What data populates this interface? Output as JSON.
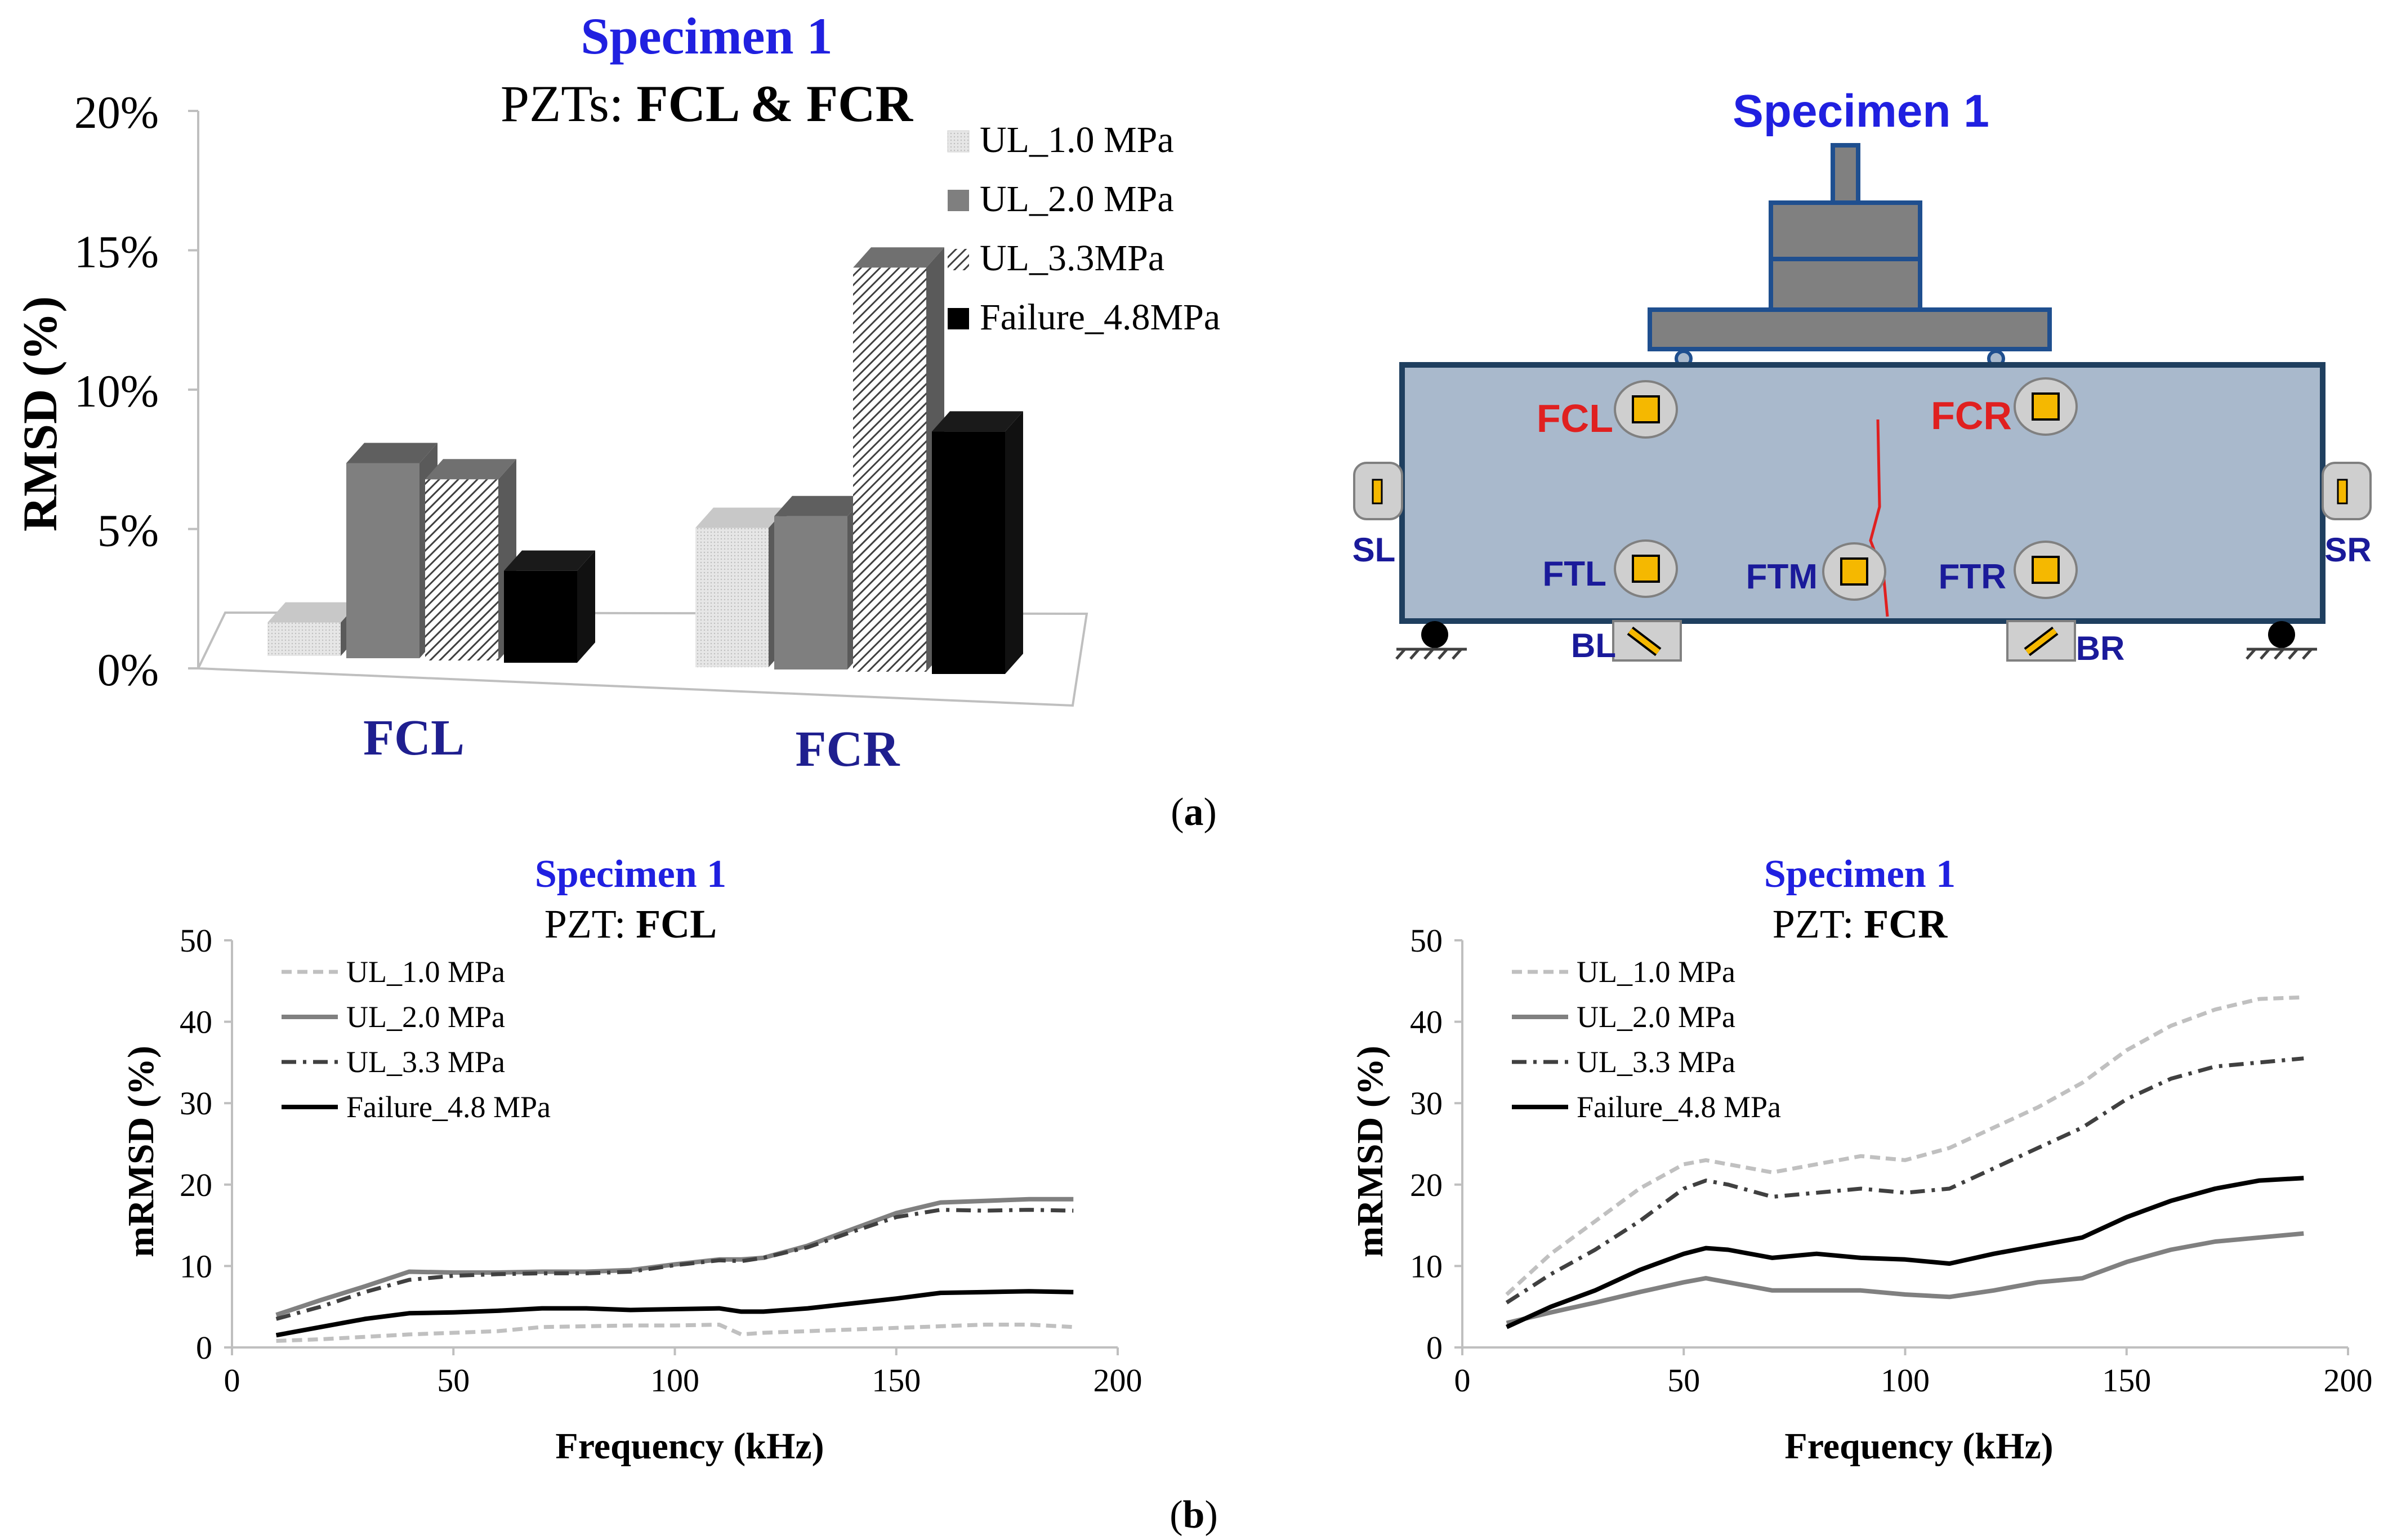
{
  "figure": {
    "panel_a_label": "(a)",
    "panel_a_letter": "a",
    "panel_b_label": "(b)",
    "panel_b_letter": "b",
    "open_paren": "(",
    "close_paren": ")"
  },
  "colors": {
    "specimen_title": "#2020e0",
    "sensor_label_red": "#e02020",
    "sensor_label_blue": "#1a1a9a",
    "category_blue": "#1f1f8f",
    "beam_fill": "#a9b9cc",
    "beam_stroke": "#1f3f5f",
    "sensor_fill": "#f5b800",
    "load_fill": "#808080",
    "load_stroke": "#1f4f8f",
    "crack": "#e02020"
  },
  "chart_data": [
    {
      "id": "bar3d",
      "type": "bar",
      "title": "Specimen 1",
      "subtitle_prefix": "PZTs: ",
      "subtitle_bold": "FCL & FCR",
      "ylabel": "RMSD (%)",
      "ylim": [
        0,
        20
      ],
      "yticks": [
        "0%",
        "5%",
        "10%",
        "15%",
        "20%"
      ],
      "categories": [
        "FCL",
        "FCR"
      ],
      "series": [
        {
          "name": "UL_1.0 MPa",
          "values": [
            1.2,
            5.0
          ],
          "color": "#d9d9d9",
          "pattern": "light"
        },
        {
          "name": "UL_2.0 MPa",
          "values": [
            7.0,
            5.5
          ],
          "color": "#7f7f7f",
          "pattern": "solid"
        },
        {
          "name": "UL_3.3MPa",
          "values": [
            6.5,
            14.5
          ],
          "color": "#bfbfbf",
          "pattern": "hatch"
        },
        {
          "name": "Failure_4.8MPa",
          "values": [
            3.3,
            8.7
          ],
          "color": "#000000",
          "pattern": "solid"
        }
      ],
      "legend": "top-right"
    },
    {
      "id": "lineFCL",
      "type": "line",
      "title": "Specimen 1",
      "subtitle_prefix": "PZT: ",
      "subtitle_bold": "FCL",
      "xlabel": "Frequency (kHz)",
      "ylabel": "mRMSD (%)",
      "xlim": [
        0,
        200
      ],
      "ylim": [
        0,
        50
      ],
      "xticks": [
        "0",
        "50",
        "100",
        "150",
        "200"
      ],
      "yticks": [
        "0",
        "10",
        "20",
        "30",
        "40",
        "50"
      ],
      "x": [
        10,
        20,
        30,
        40,
        50,
        60,
        70,
        80,
        90,
        100,
        110,
        115,
        120,
        130,
        140,
        150,
        160,
        170,
        180,
        190
      ],
      "series": [
        {
          "name": "UL_1.0 MPa",
          "style": "dashed-light",
          "values": [
            0.8,
            1.0,
            1.3,
            1.6,
            1.8,
            2.0,
            2.5,
            2.6,
            2.7,
            2.7,
            2.8,
            1.6,
            1.8,
            2.0,
            2.2,
            2.4,
            2.6,
            2.8,
            2.8,
            2.5
          ]
        },
        {
          "name": "UL_2.0 MPa",
          "style": "solid-gray",
          "values": [
            4.0,
            5.8,
            7.5,
            9.3,
            9.2,
            9.2,
            9.3,
            9.3,
            9.5,
            10.2,
            10.8,
            10.8,
            11.0,
            12.5,
            14.5,
            16.5,
            17.8,
            18.0,
            18.2,
            18.2
          ]
        },
        {
          "name": "UL_3.3 MPa",
          "style": "dashdot-dark",
          "values": [
            3.5,
            5.0,
            6.8,
            8.3,
            8.8,
            9.0,
            9.1,
            9.1,
            9.3,
            10.1,
            10.7,
            10.6,
            11.0,
            12.3,
            14.2,
            16.0,
            16.9,
            16.8,
            16.9,
            16.8
          ]
        },
        {
          "name": "Failure_4.8 MPa",
          "style": "solid-black",
          "values": [
            1.5,
            2.5,
            3.5,
            4.2,
            4.3,
            4.5,
            4.8,
            4.8,
            4.6,
            4.7,
            4.8,
            4.4,
            4.4,
            4.8,
            5.4,
            6.0,
            6.7,
            6.8,
            6.9,
            6.8
          ]
        }
      ],
      "legend": "top-left"
    },
    {
      "id": "lineFCR",
      "type": "line",
      "title": "Specimen 1",
      "subtitle_prefix": "PZT: ",
      "subtitle_bold": "FCR",
      "xlabel": "Frequency (kHz)",
      "ylabel": "mRMSD (%)",
      "xlim": [
        0,
        200
      ],
      "ylim": [
        0,
        50
      ],
      "xticks": [
        "0",
        "50",
        "100",
        "150",
        "200"
      ],
      "yticks": [
        "0",
        "10",
        "20",
        "30",
        "40",
        "50"
      ],
      "x": [
        10,
        20,
        30,
        40,
        50,
        55,
        60,
        70,
        80,
        90,
        100,
        110,
        120,
        130,
        140,
        150,
        160,
        170,
        180,
        190
      ],
      "series": [
        {
          "name": "UL_1.0 MPa",
          "style": "dashed-light",
          "values": [
            6.5,
            11.5,
            15.5,
            19.5,
            22.5,
            23.0,
            22.5,
            21.5,
            22.5,
            23.5,
            23.0,
            24.5,
            27.0,
            29.5,
            32.5,
            36.5,
            39.5,
            41.5,
            42.8,
            43.0
          ]
        },
        {
          "name": "UL_2.0 MPa",
          "style": "solid-gray",
          "values": [
            3.0,
            4.3,
            5.5,
            6.8,
            8.0,
            8.5,
            8.0,
            7.0,
            7.0,
            7.0,
            6.5,
            6.2,
            7.0,
            8.0,
            8.5,
            10.5,
            12.0,
            13.0,
            13.5,
            14.0
          ]
        },
        {
          "name": "UL_3.3 MPa",
          "style": "dashdot-dark",
          "values": [
            5.5,
            9.0,
            12.0,
            15.5,
            19.5,
            20.5,
            20.0,
            18.5,
            19.0,
            19.5,
            19.0,
            19.5,
            22.0,
            24.5,
            27.0,
            30.5,
            33.0,
            34.5,
            35.0,
            35.5
          ]
        },
        {
          "name": "Failure_4.8 MPa",
          "style": "solid-black",
          "values": [
            2.5,
            5.0,
            7.0,
            9.5,
            11.5,
            12.2,
            12.0,
            11.0,
            11.5,
            11.0,
            10.8,
            10.3,
            11.5,
            12.5,
            13.5,
            16.0,
            18.0,
            19.5,
            20.5,
            20.8
          ]
        }
      ],
      "legend": "top-left"
    }
  ],
  "diagram": {
    "title": "Specimen 1",
    "sensors": [
      {
        "label": "FCL",
        "color": "red"
      },
      {
        "label": "FCR",
        "color": "red"
      },
      {
        "label": "FTL",
        "color": "blue"
      },
      {
        "label": "FTM",
        "color": "blue"
      },
      {
        "label": "FTR",
        "color": "blue"
      }
    ],
    "side_sensors": [
      {
        "label": "SL"
      },
      {
        "label": "SR"
      },
      {
        "label": "BL"
      },
      {
        "label": "BR"
      }
    ]
  }
}
